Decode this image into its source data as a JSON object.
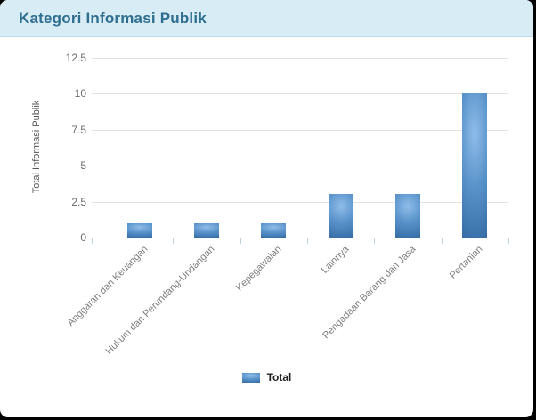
{
  "header": {
    "title": "Kategori Informasi Publik"
  },
  "chart_data": {
    "type": "bar",
    "title": "Kategori Informasi Publik",
    "categories": [
      "Anggaran dan Keuangan",
      "Hukum dan Perundang-Undangan",
      "Kepegawaian",
      "Lainnya",
      "Pengadaan Barang dan Jasa",
      "Pertanian"
    ],
    "series": [
      {
        "name": "Total",
        "values": [
          1,
          1,
          1,
          3,
          3,
          10
        ]
      }
    ],
    "xlabel": "",
    "ylabel": "Total Informasi Publik",
    "yticks": [
      0,
      2.5,
      5,
      7.5,
      10,
      12.5
    ],
    "ylim": [
      0,
      12.5
    ],
    "grid": true,
    "legend_position": "bottom",
    "bar_gradient": [
      "#8fbde9",
      "#5b94cb",
      "#336aa2"
    ]
  },
  "colors": {
    "header_bg": "#d8ecf5",
    "header_border": "#b9dcec",
    "title_text": "#2e6e8f",
    "gridline": "#e2e2e2",
    "axis": "#c2d3e0",
    "tick_label": "#6b6b6b",
    "x_label": "#7d7d7d"
  }
}
